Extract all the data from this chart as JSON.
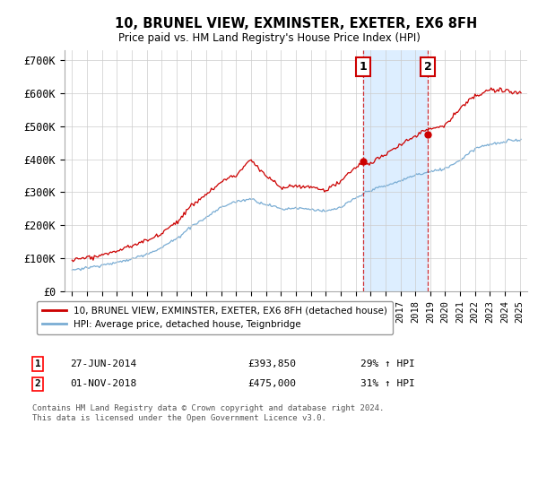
{
  "title": "10, BRUNEL VIEW, EXMINSTER, EXETER, EX6 8FH",
  "subtitle": "Price paid vs. HM Land Registry's House Price Index (HPI)",
  "ylabel_ticks": [
    "£0",
    "£100K",
    "£200K",
    "£300K",
    "£400K",
    "£500K",
    "£600K",
    "£700K"
  ],
  "ytick_values": [
    0,
    100000,
    200000,
    300000,
    400000,
    500000,
    600000,
    700000
  ],
  "ylim": [
    0,
    730000
  ],
  "xlim_start": 1994.5,
  "xlim_end": 2025.5,
  "legend_label_red": "10, BRUNEL VIEW, EXMINSTER, EXETER, EX6 8FH (detached house)",
  "legend_label_blue": "HPI: Average price, detached house, Teignbridge",
  "sale1_date": "27-JUN-2014",
  "sale1_price": "£393,850",
  "sale1_hpi": "29% ↑ HPI",
  "sale1_x": 2014.5,
  "sale2_date": "01-NOV-2018",
  "sale2_price": "£475,000",
  "sale2_hpi": "31% ↑ HPI",
  "sale2_x": 2018.83,
  "footnote1": "Contains HM Land Registry data © Crown copyright and database right 2024.",
  "footnote2": "This data is licensed under the Open Government Licence v3.0.",
  "red_color": "#cc0000",
  "blue_color": "#7aadd4",
  "shade_color": "#ddeeff",
  "background_color": "#ffffff",
  "grid_color": "#cccccc"
}
